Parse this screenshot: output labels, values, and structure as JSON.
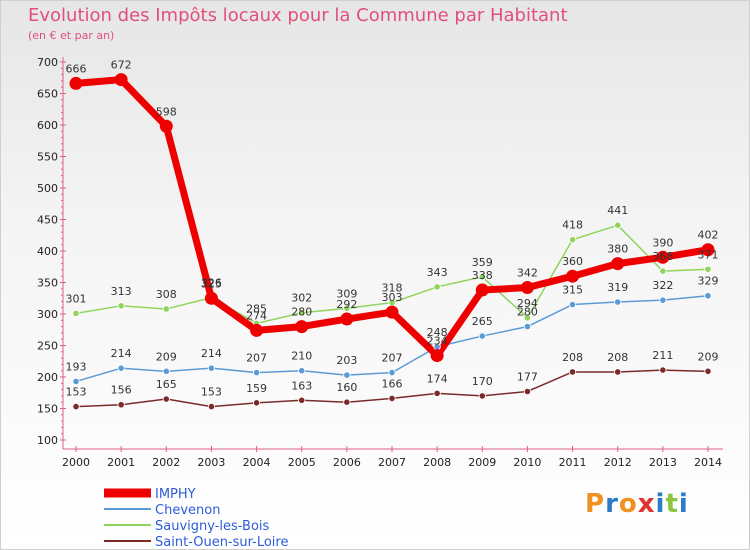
{
  "header": {
    "title": "Evolution des Impôts locaux pour la Commune par Habitant",
    "subtitle": "(en € et par an)"
  },
  "logo": {
    "text": "Proxiti",
    "colors": [
      "#f09020",
      "#2c7bc8",
      "#f09020",
      "#e03030",
      "#2c7bc8",
      "#8cc63f",
      "#2c7bc8"
    ]
  },
  "chart_data": {
    "type": "line",
    "title": "Evolution des Impôts locaux pour la Commune par Habitant",
    "subtitle": "(en € et par an)",
    "x": [
      "2000",
      "2001",
      "2002",
      "2003",
      "2004",
      "2005",
      "2006",
      "2007",
      "2008",
      "2009",
      "2010",
      "2011",
      "2012",
      "2013",
      "2014"
    ],
    "ylim": [
      100,
      700
    ],
    "yticks": [
      100,
      150,
      200,
      250,
      300,
      350,
      400,
      450,
      500,
      550,
      600,
      650,
      700
    ],
    "grid": false,
    "legend_position": "bottom-left",
    "series": [
      {
        "name": "IMPHY",
        "color": "#ee0000",
        "values": [
          666,
          672,
          598,
          325,
          274,
          280,
          292,
          303,
          234,
          338,
          342,
          360,
          380,
          390,
          402
        ]
      },
      {
        "name": "Chevenon",
        "color": "#5b9bd5",
        "values": [
          193,
          214,
          209,
          214,
          207,
          210,
          203,
          207,
          248,
          265,
          280,
          315,
          319,
          322,
          329
        ]
      },
      {
        "name": "Sauvigny-les-Bois",
        "color": "#8fd45c",
        "values": [
          301,
          313,
          308,
          326,
          285,
          302,
          309,
          318,
          343,
          359,
          294,
          418,
          441,
          368,
          371
        ]
      },
      {
        "name": "Saint-Ouen-sur-Loire",
        "color": "#7b2a2a",
        "values": [
          153,
          156,
          165,
          153,
          159,
          163,
          160,
          166,
          174,
          170,
          177,
          208,
          208,
          211,
          209
        ]
      }
    ]
  }
}
